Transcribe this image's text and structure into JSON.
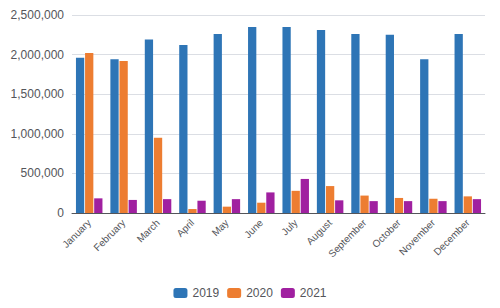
{
  "chart_data": {
    "type": "bar",
    "categories": [
      "January",
      "February",
      "March",
      "April",
      "May",
      "June",
      "July",
      "August",
      "September",
      "October",
      "November",
      "December"
    ],
    "series": [
      {
        "name": "2019",
        "color": "#2E75B6",
        "values": [
          1960000,
          1940000,
          2190000,
          2120000,
          2260000,
          2350000,
          2350000,
          2310000,
          2260000,
          2250000,
          1940000,
          2260000
        ]
      },
      {
        "name": "2020",
        "color": "#ED7D31",
        "values": [
          2020000,
          1920000,
          950000,
          50000,
          80000,
          130000,
          280000,
          340000,
          220000,
          190000,
          180000,
          210000
        ]
      },
      {
        "name": "2021",
        "color": "#A020A0",
        "values": [
          185000,
          165000,
          175000,
          155000,
          175000,
          260000,
          430000,
          160000,
          150000,
          150000,
          150000,
          175000
        ]
      }
    ],
    "ylim": [
      0,
      2500000
    ],
    "yticks": [
      0,
      {
        "value": 500000,
        "label": "500,000"
      },
      {
        "value": 1000000,
        "label": "1,000,000"
      },
      {
        "value": 1500000,
        "label": "1,500,000"
      },
      {
        "value": 2000000,
        "label": "2,000,000"
      },
      {
        "value": 2500000,
        "label": "2,500,000"
      }
    ],
    "grid": true,
    "legend": "bottom"
  }
}
